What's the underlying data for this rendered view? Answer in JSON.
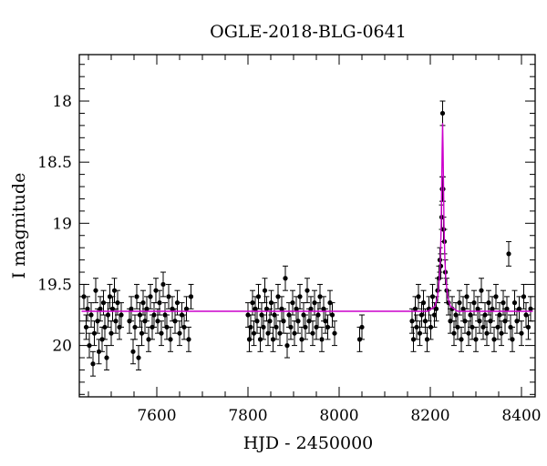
{
  "chart_data": {
    "type": "scatter",
    "title": "OGLE-2018-BLG-0641",
    "xlabel": "HJD - 2450000",
    "ylabel": "I magnitude",
    "xlim": [
      7430,
      8430
    ],
    "ylim": [
      20.42,
      17.62
    ],
    "y_inverted": true,
    "x_ticks": [
      7600,
      7800,
      8000,
      8200,
      8400
    ],
    "y_ticks": [
      18,
      18.5,
      19,
      19.5,
      20
    ],
    "y_tick_labels": [
      "18",
      "18.5",
      "19",
      "19.5",
      "20"
    ],
    "grid": false,
    "colors": {
      "points": "#000000",
      "model": "#cc00cc"
    },
    "series": [
      {
        "kind": "points_with_errorbars",
        "typical_error": 0.1,
        "points": [
          {
            "x": 7440,
            "y": 19.6
          },
          {
            "x": 7445,
            "y": 19.85
          },
          {
            "x": 7448,
            "y": 19.7
          },
          {
            "x": 7452,
            "y": 20.0
          },
          {
            "x": 7456,
            "y": 19.75
          },
          {
            "x": 7460,
            "y": 20.15
          },
          {
            "x": 7463,
            "y": 19.9
          },
          {
            "x": 7466,
            "y": 19.55
          },
          {
            "x": 7470,
            "y": 19.8
          },
          {
            "x": 7473,
            "y": 20.05
          },
          {
            "x": 7476,
            "y": 19.7
          },
          {
            "x": 7480,
            "y": 19.95
          },
          {
            "x": 7483,
            "y": 19.65
          },
          {
            "x": 7486,
            "y": 19.85
          },
          {
            "x": 7490,
            "y": 20.1
          },
          {
            "x": 7493,
            "y": 19.75
          },
          {
            "x": 7497,
            "y": 19.6
          },
          {
            "x": 7500,
            "y": 19.9
          },
          {
            "x": 7503,
            "y": 19.7
          },
          {
            "x": 7507,
            "y": 19.55
          },
          {
            "x": 7510,
            "y": 19.8
          },
          {
            "x": 7514,
            "y": 19.65
          },
          {
            "x": 7518,
            "y": 19.85
          },
          {
            "x": 7522,
            "y": 19.75
          },
          {
            "x": 7540,
            "y": 19.8
          },
          {
            "x": 7544,
            "y": 19.7
          },
          {
            "x": 7548,
            "y": 20.05
          },
          {
            "x": 7552,
            "y": 19.85
          },
          {
            "x": 7556,
            "y": 19.6
          },
          {
            "x": 7560,
            "y": 20.1
          },
          {
            "x": 7563,
            "y": 19.75
          },
          {
            "x": 7567,
            "y": 19.9
          },
          {
            "x": 7570,
            "y": 19.65
          },
          {
            "x": 7574,
            "y": 19.8
          },
          {
            "x": 7578,
            "y": 19.7
          },
          {
            "x": 7582,
            "y": 19.95
          },
          {
            "x": 7586,
            "y": 19.6
          },
          {
            "x": 7590,
            "y": 19.85
          },
          {
            "x": 7594,
            "y": 19.75
          },
          {
            "x": 7598,
            "y": 19.55
          },
          {
            "x": 7602,
            "y": 19.8
          },
          {
            "x": 7606,
            "y": 19.65
          },
          {
            "x": 7610,
            "y": 19.9
          },
          {
            "x": 7614,
            "y": 19.5
          },
          {
            "x": 7618,
            "y": 19.75
          },
          {
            "x": 7622,
            "y": 19.85
          },
          {
            "x": 7626,
            "y": 19.6
          },
          {
            "x": 7630,
            "y": 19.95
          },
          {
            "x": 7634,
            "y": 19.7
          },
          {
            "x": 7640,
            "y": 19.8
          },
          {
            "x": 7645,
            "y": 19.65
          },
          {
            "x": 7650,
            "y": 19.9
          },
          {
            "x": 7655,
            "y": 19.75
          },
          {
            "x": 7660,
            "y": 19.85
          },
          {
            "x": 7665,
            "y": 19.7
          },
          {
            "x": 7670,
            "y": 19.95
          },
          {
            "x": 7675,
            "y": 19.6
          },
          {
            "x": 7800,
            "y": 19.75
          },
          {
            "x": 7803,
            "y": 19.95
          },
          {
            "x": 7806,
            "y": 19.85
          },
          {
            "x": 7810,
            "y": 19.65
          },
          {
            "x": 7813,
            "y": 19.9
          },
          {
            "x": 7816,
            "y": 19.7
          },
          {
            "x": 7820,
            "y": 19.8
          },
          {
            "x": 7823,
            "y": 19.6
          },
          {
            "x": 7827,
            "y": 19.95
          },
          {
            "x": 7830,
            "y": 19.75
          },
          {
            "x": 7834,
            "y": 19.85
          },
          {
            "x": 7837,
            "y": 19.55
          },
          {
            "x": 7841,
            "y": 19.7
          },
          {
            "x": 7844,
            "y": 19.9
          },
          {
            "x": 7848,
            "y": 19.8
          },
          {
            "x": 7851,
            "y": 19.65
          },
          {
            "x": 7855,
            "y": 19.95
          },
          {
            "x": 7858,
            "y": 19.75
          },
          {
            "x": 7862,
            "y": 19.85
          },
          {
            "x": 7866,
            "y": 19.6
          },
          {
            "x": 7870,
            "y": 19.9
          },
          {
            "x": 7874,
            "y": 19.7
          },
          {
            "x": 7878,
            "y": 19.8
          },
          {
            "x": 7882,
            "y": 19.45
          },
          {
            "x": 7886,
            "y": 20.0
          },
          {
            "x": 7890,
            "y": 19.75
          },
          {
            "x": 7894,
            "y": 19.85
          },
          {
            "x": 7898,
            "y": 19.65
          },
          {
            "x": 7902,
            "y": 19.9
          },
          {
            "x": 7906,
            "y": 19.7
          },
          {
            "x": 7910,
            "y": 19.8
          },
          {
            "x": 7914,
            "y": 19.6
          },
          {
            "x": 7918,
            "y": 19.95
          },
          {
            "x": 7922,
            "y": 19.75
          },
          {
            "x": 7926,
            "y": 19.85
          },
          {
            "x": 7930,
            "y": 19.55
          },
          {
            "x": 7934,
            "y": 19.8
          },
          {
            "x": 7938,
            "y": 19.7
          },
          {
            "x": 7942,
            "y": 19.9
          },
          {
            "x": 7946,
            "y": 19.65
          },
          {
            "x": 7950,
            "y": 19.85
          },
          {
            "x": 7954,
            "y": 19.75
          },
          {
            "x": 7958,
            "y": 19.6
          },
          {
            "x": 7962,
            "y": 19.95
          },
          {
            "x": 7966,
            "y": 19.7
          },
          {
            "x": 7970,
            "y": 19.8
          },
          {
            "x": 7975,
            "y": 19.85
          },
          {
            "x": 7980,
            "y": 19.65
          },
          {
            "x": 7985,
            "y": 19.75
          },
          {
            "x": 7990,
            "y": 19.9
          },
          {
            "x": 8045,
            "y": 19.95
          },
          {
            "x": 8050,
            "y": 19.85
          },
          {
            "x": 8160,
            "y": 19.8
          },
          {
            "x": 8163,
            "y": 19.95
          },
          {
            "x": 8167,
            "y": 19.7
          },
          {
            "x": 8170,
            "y": 19.85
          },
          {
            "x": 8174,
            "y": 19.6
          },
          {
            "x": 8177,
            "y": 19.9
          },
          {
            "x": 8181,
            "y": 19.75
          },
          {
            "x": 8185,
            "y": 19.65
          },
          {
            "x": 8189,
            "y": 19.8
          },
          {
            "x": 8193,
            "y": 19.95
          },
          {
            "x": 8197,
            "y": 19.7
          },
          {
            "x": 8201,
            "y": 19.85
          },
          {
            "x": 8205,
            "y": 19.6
          },
          {
            "x": 8209,
            "y": 19.75
          },
          {
            "x": 8213,
            "y": 19.7
          },
          {
            "x": 8216,
            "y": 19.55
          },
          {
            "x": 8219,
            "y": 19.45
          },
          {
            "x": 8221,
            "y": 19.3
          },
          {
            "x": 8223,
            "y": 19.35
          },
          {
            "x": 8225,
            "y": 18.95
          },
          {
            "x": 8226,
            "y": 18.72
          },
          {
            "x": 8227,
            "y": 18.1
          },
          {
            "x": 8228,
            "y": 18.72
          },
          {
            "x": 8229,
            "y": 19.05
          },
          {
            "x": 8231,
            "y": 19.15
          },
          {
            "x": 8233,
            "y": 19.4
          },
          {
            "x": 8236,
            "y": 19.55
          },
          {
            "x": 8240,
            "y": 19.65
          },
          {
            "x": 8244,
            "y": 19.8
          },
          {
            "x": 8248,
            "y": 19.7
          },
          {
            "x": 8252,
            "y": 19.9
          },
          {
            "x": 8256,
            "y": 19.75
          },
          {
            "x": 8260,
            "y": 19.85
          },
          {
            "x": 8264,
            "y": 19.65
          },
          {
            "x": 8268,
            "y": 19.95
          },
          {
            "x": 8272,
            "y": 19.7
          },
          {
            "x": 8276,
            "y": 19.8
          },
          {
            "x": 8280,
            "y": 19.6
          },
          {
            "x": 8284,
            "y": 19.9
          },
          {
            "x": 8288,
            "y": 19.75
          },
          {
            "x": 8292,
            "y": 19.85
          },
          {
            "x": 8296,
            "y": 19.65
          },
          {
            "x": 8300,
            "y": 19.95
          },
          {
            "x": 8304,
            "y": 19.7
          },
          {
            "x": 8308,
            "y": 19.8
          },
          {
            "x": 8312,
            "y": 19.55
          },
          {
            "x": 8316,
            "y": 19.85
          },
          {
            "x": 8320,
            "y": 19.75
          },
          {
            "x": 8324,
            "y": 19.9
          },
          {
            "x": 8328,
            "y": 19.65
          },
          {
            "x": 8332,
            "y": 19.8
          },
          {
            "x": 8336,
            "y": 19.7
          },
          {
            "x": 8340,
            "y": 19.95
          },
          {
            "x": 8344,
            "y": 19.6
          },
          {
            "x": 8348,
            "y": 19.85
          },
          {
            "x": 8352,
            "y": 19.75
          },
          {
            "x": 8356,
            "y": 19.9
          },
          {
            "x": 8360,
            "y": 19.65
          },
          {
            "x": 8364,
            "y": 19.8
          },
          {
            "x": 8368,
            "y": 19.7
          },
          {
            "x": 8372,
            "y": 19.25
          },
          {
            "x": 8376,
            "y": 19.85
          },
          {
            "x": 8380,
            "y": 19.95
          },
          {
            "x": 8385,
            "y": 19.65
          },
          {
            "x": 8390,
            "y": 19.8
          },
          {
            "x": 8395,
            "y": 19.7
          },
          {
            "x": 8400,
            "y": 19.9
          },
          {
            "x": 8405,
            "y": 19.6
          },
          {
            "x": 8410,
            "y": 19.75
          },
          {
            "x": 8415,
            "y": 19.85
          },
          {
            "x": 8420,
            "y": 19.7
          }
        ]
      },
      {
        "kind": "model_curve",
        "baseline": 19.72,
        "points": [
          {
            "x": 7435,
            "y": 19.72
          },
          {
            "x": 8195,
            "y": 19.72
          },
          {
            "x": 8210,
            "y": 19.68
          },
          {
            "x": 8216,
            "y": 19.6
          },
          {
            "x": 8220,
            "y": 19.45
          },
          {
            "x": 8222,
            "y": 19.3
          },
          {
            "x": 8224,
            "y": 19.0
          },
          {
            "x": 8225,
            "y": 18.7
          },
          {
            "x": 8226,
            "y": 18.4
          },
          {
            "x": 8227,
            "y": 18.18
          },
          {
            "x": 8228,
            "y": 18.4
          },
          {
            "x": 8229,
            "y": 18.7
          },
          {
            "x": 8230,
            "y": 19.0
          },
          {
            "x": 8232,
            "y": 19.3
          },
          {
            "x": 8234,
            "y": 19.45
          },
          {
            "x": 8238,
            "y": 19.6
          },
          {
            "x": 8244,
            "y": 19.68
          },
          {
            "x": 8260,
            "y": 19.72
          },
          {
            "x": 8425,
            "y": 19.72
          }
        ]
      }
    ]
  }
}
